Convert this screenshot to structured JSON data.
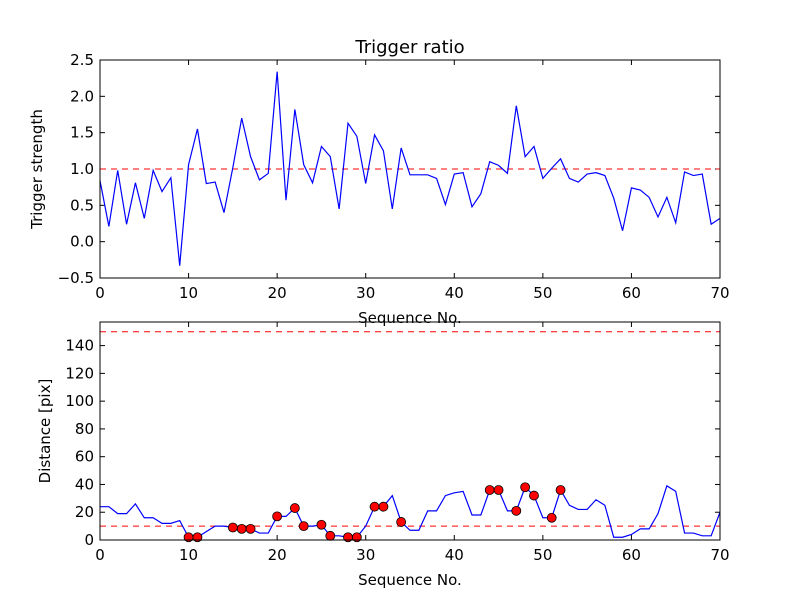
{
  "chart_data": [
    {
      "type": "line",
      "title": "Trigger ratio",
      "xlabel": "Sequence No.",
      "ylabel": "Trigger strength",
      "xlim": [
        0,
        70
      ],
      "ylim": [
        -0.5,
        2.5
      ],
      "xticks": [
        "0",
        "10",
        "20",
        "30",
        "40",
        "50",
        "60",
        "70"
      ],
      "yticks": [
        "−0.5",
        "0.0",
        "0.5",
        "1.0",
        "1.5",
        "2.0",
        "2.5"
      ],
      "reference_lines": [
        {
          "y": 1.0,
          "color": "#ff0000",
          "style": "dashed"
        }
      ],
      "series": [
        {
          "name": "trigger strength",
          "color": "#0000ff",
          "x": [
            0,
            1,
            2,
            3,
            4,
            5,
            6,
            7,
            8,
            9,
            10,
            11,
            12,
            13,
            14,
            15,
            16,
            17,
            18,
            19,
            20,
            21,
            22,
            23,
            24,
            25,
            26,
            27,
            28,
            29,
            30,
            31,
            32,
            33,
            34,
            35,
            36,
            37,
            38,
            39,
            40,
            41,
            42,
            43,
            44,
            45,
            46,
            47,
            48,
            49,
            50,
            51,
            52,
            53,
            54,
            55,
            56,
            57,
            58,
            59,
            60,
            61,
            62,
            63,
            64,
            65,
            66,
            67,
            68,
            69,
            70
          ],
          "values": [
            0.84,
            0.21,
            0.98,
            0.24,
            0.81,
            0.32,
            0.98,
            0.69,
            0.88,
            -0.33,
            1.06,
            1.55,
            0.8,
            0.82,
            0.4,
            1.02,
            1.7,
            1.17,
            0.85,
            0.94,
            2.34,
            0.57,
            1.82,
            1.06,
            0.81,
            1.31,
            1.17,
            0.45,
            1.63,
            1.45,
            0.8,
            1.47,
            1.25,
            0.45,
            1.29,
            0.92,
            0.92,
            0.92,
            0.87,
            0.51,
            0.93,
            0.95,
            0.48,
            0.66,
            1.1,
            1.05,
            0.94,
            1.87,
            1.17,
            1.31,
            0.87,
            1.01,
            1.14,
            0.87,
            0.82,
            0.93,
            0.95,
            0.91,
            0.6,
            0.15,
            0.74,
            0.71,
            0.61,
            0.34,
            0.61,
            0.26,
            0.96,
            0.91,
            0.93,
            0.24,
            0.32
          ]
        }
      ]
    },
    {
      "type": "line",
      "title": "",
      "xlabel": "Sequence No.",
      "ylabel": "Distance [pix]",
      "xlim": [
        0,
        70
      ],
      "ylim": [
        0,
        157
      ],
      "xticks": [
        "0",
        "10",
        "20",
        "30",
        "40",
        "50",
        "60",
        "70"
      ],
      "yticks": [
        "0",
        "20",
        "40",
        "60",
        "80",
        "100",
        "120",
        "140"
      ],
      "reference_lines": [
        {
          "y": 150,
          "color": "#ff0000",
          "style": "dashed"
        },
        {
          "y": 10,
          "color": "#ff0000",
          "style": "dashed"
        }
      ],
      "series": [
        {
          "name": "distance",
          "color": "#0000ff",
          "x": [
            0,
            1,
            2,
            3,
            4,
            5,
            6,
            7,
            8,
            9,
            10,
            11,
            12,
            13,
            14,
            15,
            16,
            17,
            18,
            19,
            20,
            21,
            22,
            23,
            24,
            25,
            26,
            27,
            28,
            29,
            30,
            31,
            32,
            33,
            34,
            35,
            36,
            37,
            38,
            39,
            40,
            41,
            42,
            43,
            44,
            45,
            46,
            47,
            48,
            49,
            50,
            51,
            52,
            53,
            54,
            55,
            56,
            57,
            58,
            59,
            60,
            61,
            62,
            63,
            64,
            65,
            66,
            67,
            68,
            69,
            70
          ],
          "values": [
            24,
            24,
            19,
            19,
            26,
            16,
            16,
            12,
            12,
            14,
            2,
            2,
            6,
            10,
            10,
            9,
            8,
            8,
            5,
            5,
            17,
            17,
            23,
            10,
            10,
            11,
            3,
            3,
            2,
            2,
            10,
            24,
            24,
            32,
            13,
            7,
            7,
            21,
            21,
            32,
            34,
            35,
            18,
            18,
            36,
            36,
            21,
            21,
            38,
            32,
            16,
            16,
            36,
            25,
            22,
            22,
            29,
            25,
            2,
            2,
            4,
            8,
            8,
            19,
            39,
            35,
            5,
            5,
            3,
            3,
            20
          ]
        }
      ],
      "markers": {
        "name": "flagged points",
        "color": "#ff0000",
        "x": [
          10,
          11,
          15,
          16,
          17,
          20,
          22,
          23,
          25,
          26,
          28,
          29,
          31,
          32,
          34,
          44,
          45,
          47,
          48,
          49,
          51,
          52
        ],
        "values": [
          2,
          2,
          9,
          8,
          8,
          17,
          23,
          10,
          11,
          3,
          2,
          2,
          24,
          24,
          13,
          36,
          36,
          21,
          38,
          32,
          16,
          36
        ]
      }
    }
  ]
}
